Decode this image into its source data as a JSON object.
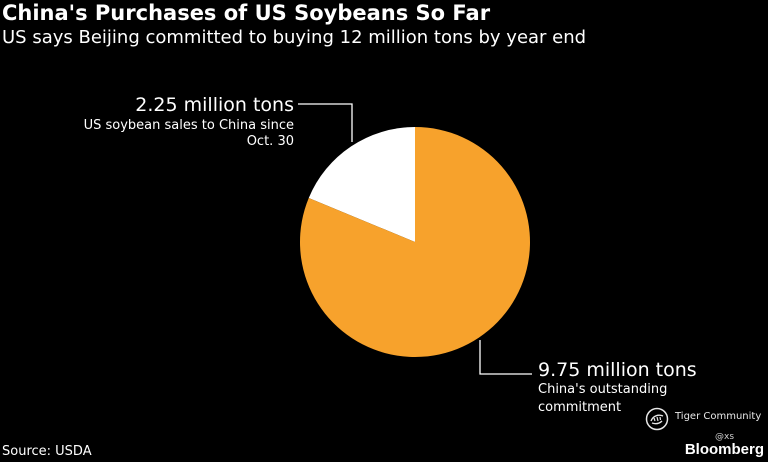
{
  "title": "China's Purchases of US Soybeans So Far",
  "subtitle": "US says Beijing committed to buying 12 million tons by year end",
  "source": "Source: USDA",
  "brand": "Bloomberg",
  "watermark": {
    "text": "Tiger Community",
    "handle": "@xs",
    "icon": "tiger-logo-icon"
  },
  "colors": {
    "background": "#000000",
    "outstanding": "#f7a22c",
    "sales": "#ffffff",
    "text": "#ffffff"
  },
  "chart_data": {
    "type": "pie",
    "title": "China's Purchases of US Soybeans So Far",
    "subtitle": "US says Beijing committed to buying 12 million tons by year end",
    "unit": "million tons",
    "slices": [
      {
        "label": "2.25 million tons",
        "description": "US soybean sales to China since Oct. 30",
        "value": 2.25,
        "color": "#ffffff"
      },
      {
        "label": "9.75 million tons",
        "description": "China's outstanding commitment",
        "value": 9.75,
        "color": "#f7a22c"
      }
    ]
  }
}
